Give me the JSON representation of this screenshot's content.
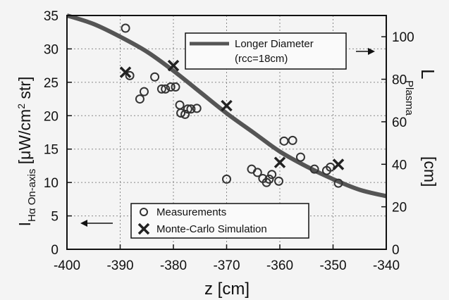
{
  "chart_data": {
    "type": "scatter",
    "xlabel": "z [cm]",
    "ylabel_left": {
      "main": "I",
      "subscript": "Hα On-axis",
      "bracket": "[μW/cm",
      "sup": "2",
      "tail": " str]"
    },
    "ylabel_right": {
      "main": "L",
      "subscript": "Plasma",
      "unit": "[cm]"
    },
    "xlim": [
      -400,
      -340
    ],
    "ylim_left": [
      0,
      35
    ],
    "ylim_right": [
      0,
      110
    ],
    "grid": true,
    "x_ticks": [
      -400,
      -390,
      -380,
      -370,
      -360,
      -350,
      -340
    ],
    "x_tick_labels": [
      "-400",
      "-390",
      "-380",
      "-370",
      "-360",
      "-350",
      "-340"
    ],
    "y_ticks_left": [
      0,
      5,
      10,
      15,
      20,
      25,
      30,
      35
    ],
    "y_tick_labels_left": [
      "0",
      "5",
      "10",
      "15",
      "20",
      "25",
      "30",
      "35"
    ],
    "y_ticks_right": [
      0,
      20,
      40,
      60,
      80,
      100
    ],
    "y_tick_labels_right": [
      "0",
      "20",
      "40",
      "60",
      "80",
      "100"
    ],
    "series": [
      {
        "name": "Measurements",
        "marker": "circle",
        "axis": "left",
        "points": [
          [
            -389,
            33.1
          ],
          [
            -388.2,
            26.0
          ],
          [
            -386.3,
            22.5
          ],
          [
            -385.5,
            23.6
          ],
          [
            -383.5,
            25.8
          ],
          [
            -382.2,
            24.0
          ],
          [
            -381.5,
            24.0
          ],
          [
            -380.5,
            24.3
          ],
          [
            -379.6,
            24.3
          ],
          [
            -378.8,
            21.6
          ],
          [
            -378.6,
            20.4
          ],
          [
            -377.8,
            20.2
          ],
          [
            -377.3,
            21.0
          ],
          [
            -376.7,
            21.0
          ],
          [
            -375.6,
            21.1
          ],
          [
            -370,
            10.5
          ],
          [
            -365.3,
            12.0
          ],
          [
            -364.2,
            11.5
          ],
          [
            -363.2,
            10.6
          ],
          [
            -362.5,
            10.0
          ],
          [
            -362,
            10.5
          ],
          [
            -361.5,
            11.2
          ],
          [
            -360.2,
            10.2
          ],
          [
            -359.2,
            16.2
          ],
          [
            -357.6,
            16.3
          ],
          [
            -356.1,
            13.8
          ],
          [
            -353.5,
            12.0
          ],
          [
            -351.2,
            11.8
          ],
          [
            -350.5,
            12.3
          ],
          [
            -349,
            9.9
          ]
        ]
      },
      {
        "name": "Monte-Carlo Simulation",
        "marker": "x",
        "axis": "left",
        "points": [
          [
            -389,
            26.5
          ],
          [
            -380,
            27.5
          ],
          [
            -370,
            21.5
          ],
          [
            -360,
            13.0
          ],
          [
            -349,
            12.7
          ]
        ]
      },
      {
        "name": "Longer Diameter",
        "name_sub": "(rcc=18cm)",
        "marker": "line",
        "axis": "right",
        "points": [
          [
            -400,
            110
          ],
          [
            -395,
            106
          ],
          [
            -390,
            100
          ],
          [
            -385,
            93
          ],
          [
            -380,
            84
          ],
          [
            -375,
            74
          ],
          [
            -370,
            64
          ],
          [
            -365,
            55
          ],
          [
            -360,
            46
          ],
          [
            -355,
            39
          ],
          [
            -350,
            33
          ],
          [
            -345,
            28
          ],
          [
            -340,
            25
          ]
        ]
      }
    ],
    "colors": {
      "line": "#555555",
      "marker": "#333333",
      "grid": "#888888",
      "background": "#f4f4f4"
    }
  }
}
